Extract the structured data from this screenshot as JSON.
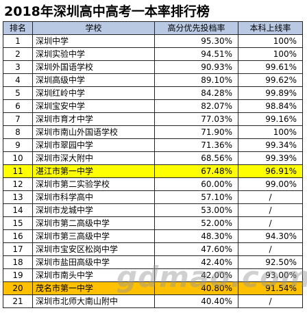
{
  "title": "2018年深圳高中高考一本率排行榜",
  "headers": {
    "rank": "排名",
    "school": "学校",
    "ratio": "高分优先投档率",
    "undergrad": "本科上线率"
  },
  "rows": [
    {
      "rank": "1",
      "school": "深圳中学",
      "ratio": "95.30%",
      "undergrad": "100%"
    },
    {
      "rank": "2",
      "school": "深圳实验中学",
      "ratio": "94.51%",
      "undergrad": "100%"
    },
    {
      "rank": "3",
      "school": "深圳外国语学校",
      "ratio": "90.93%",
      "undergrad": "99.61%"
    },
    {
      "rank": "4",
      "school": "深圳高级中学",
      "ratio": "89.10%",
      "undergrad": "99.62%"
    },
    {
      "rank": "5",
      "school": "深圳红岭中学",
      "ratio": "84.28%",
      "undergrad": "99.89%"
    },
    {
      "rank": "6",
      "school": "深圳宝安中学",
      "ratio": "82.07%",
      "undergrad": "98.84%"
    },
    {
      "rank": "7",
      "school": "深圳市育才中学",
      "ratio": "77.03%",
      "undergrad": "99.16%"
    },
    {
      "rank": "8",
      "school": "深圳市南山外国语学校",
      "ratio": "71.90%",
      "undergrad": "100%"
    },
    {
      "rank": "9",
      "school": "深圳市翠园中学",
      "ratio": "71.36%",
      "undergrad": "99.34%"
    },
    {
      "rank": "10",
      "school": "深圳市深大附中",
      "ratio": "68.56%",
      "undergrad": "99.39%"
    },
    {
      "rank": "11",
      "school": "湛江市第一中学",
      "ratio": "67.48%",
      "undergrad": "96.91%",
      "highlight": "#ffff00"
    },
    {
      "rank": "12",
      "school": "深圳市第二实验学校",
      "ratio": "60.00%",
      "undergrad": "99.00%"
    },
    {
      "rank": "13",
      "school": "深圳市科学高中",
      "ratio": "57.10%",
      "undergrad": "/"
    },
    {
      "rank": "14",
      "school": "深圳市龙城中学",
      "ratio": "53.00%",
      "undergrad": "/"
    },
    {
      "rank": "15",
      "school": "深圳市第二高级中学",
      "ratio": "52.00%",
      "undergrad": "/"
    },
    {
      "rank": "16",
      "school": "深圳市第三高级中学",
      "ratio": "48.30%",
      "undergrad": "94.30%"
    },
    {
      "rank": "17",
      "school": "深圳市宝安区松岗中学",
      "ratio": "47.60%",
      "undergrad": "/"
    },
    {
      "rank": "18",
      "school": "深圳市盐田高级中学",
      "ratio": "42.40%",
      "undergrad": "92.50%"
    },
    {
      "rank": "19",
      "school": "深圳市南头中学",
      "ratio": "42.00%",
      "undergrad": "93.00%"
    },
    {
      "rank": "20",
      "school": "茂名市第一中学",
      "ratio": "40.80%",
      "undergrad": "91.54%",
      "highlight": "#ffc000"
    },
    {
      "rank": "21",
      "school": "深圳市北师大南山附中",
      "ratio": "40.40%",
      "undergrad": "/"
    }
  ],
  "watermark": "gdmao.com"
}
